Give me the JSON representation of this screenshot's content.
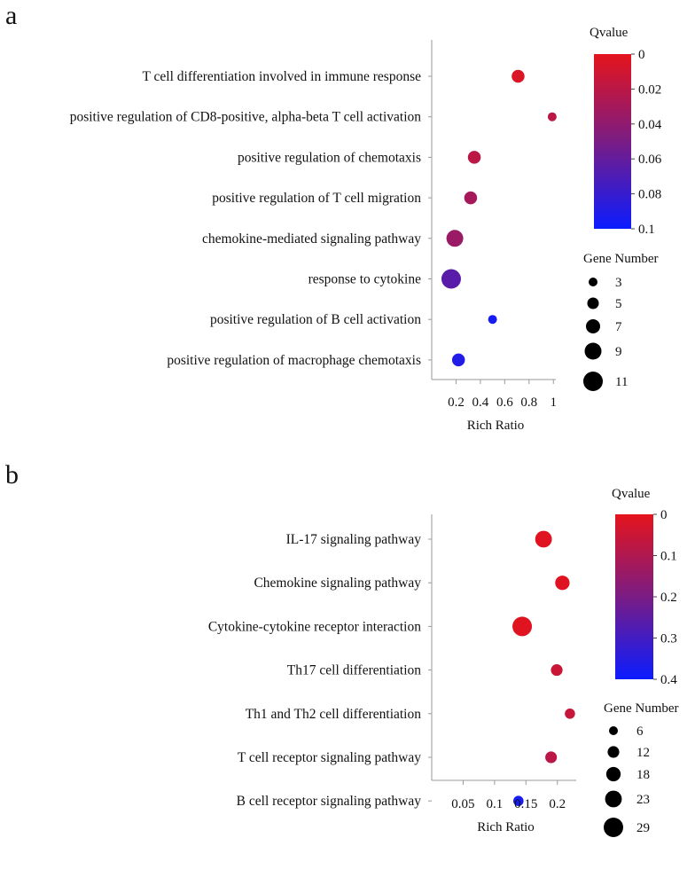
{
  "colors": {
    "low": "#0b1cff",
    "mid": "#7a1c84",
    "high": "#e5141c",
    "dot_outline": "#000000"
  },
  "chart_data": [
    {
      "panel": "a",
      "type": "scatter",
      "xlabel": "Rich Ratio",
      "xticks": [
        0.2,
        0.4,
        0.6,
        0.8,
        1
      ],
      "xtick_labels": [
        "0.2",
        "0.4",
        "0.6",
        "0.8",
        "1"
      ],
      "xlim": [
        0,
        1.02
      ],
      "categories": [
        "T cell differentiation involved in immune response",
        "positive regulation of CD8-positive, alpha-beta T cell activation",
        "positive regulation of chemotaxis",
        "positive regulation of T cell migration",
        "chemokine-mediated signaling pathway",
        "response to cytokine",
        "positive regulation of B cell activation",
        "positive regulation of macrophage chemotaxis"
      ],
      "rich_ratio": [
        0.71,
        0.99,
        0.35,
        0.32,
        0.19,
        0.16,
        0.5,
        0.22
      ],
      "qvalue": [
        0.005,
        0.02,
        0.02,
        0.03,
        0.035,
        0.065,
        0.095,
        0.09
      ],
      "gene_number": [
        6,
        3,
        6,
        6,
        9,
        11,
        3,
        6
      ],
      "color_legend": {
        "title": "Qvalue",
        "range": [
          0,
          0.1
        ],
        "ticks": [
          "0",
          "0.02",
          "0.04",
          "0.06",
          "0.08",
          "0.1"
        ]
      },
      "size_legend": {
        "title": "Gene Number",
        "values": [
          3,
          5,
          7,
          9,
          11
        ],
        "labels": [
          "3",
          "5",
          "7",
          "9",
          "11"
        ]
      }
    },
    {
      "panel": "b",
      "type": "scatter",
      "xlabel": "Rich Ratio",
      "xticks": [
        0.05,
        0.1,
        0.15,
        0.2
      ],
      "xtick_labels": [
        "0.05",
        "0.1",
        "0.15",
        "0.2"
      ],
      "xlim": [
        0,
        0.23
      ],
      "categories": [
        "IL-17 signaling pathway",
        "Chemokine signaling pathway",
        "Cytokine-cytokine receptor interaction",
        "Th17 cell differentiation",
        "Th1 and Th2 cell differentiation",
        "T cell receptor signaling pathway",
        "B cell receptor signaling pathway"
      ],
      "rich_ratio": [
        0.178,
        0.208,
        0.144,
        0.199,
        0.22,
        0.19,
        0.138
      ],
      "qvalue": [
        0.01,
        0.01,
        0.01,
        0.05,
        0.06,
        0.08,
        0.38
      ],
      "gene_number": [
        23,
        18,
        29,
        12,
        9,
        12,
        9
      ],
      "color_legend": {
        "title": "Qvalue",
        "range": [
          0,
          0.4
        ],
        "ticks": [
          "0",
          "0.1",
          "0.2",
          "0.3",
          "0.4"
        ]
      },
      "size_legend": {
        "title": "Gene Number",
        "values": [
          6,
          12,
          18,
          23,
          29
        ],
        "labels": [
          "6",
          "12",
          "18",
          "23",
          "29"
        ]
      }
    }
  ]
}
